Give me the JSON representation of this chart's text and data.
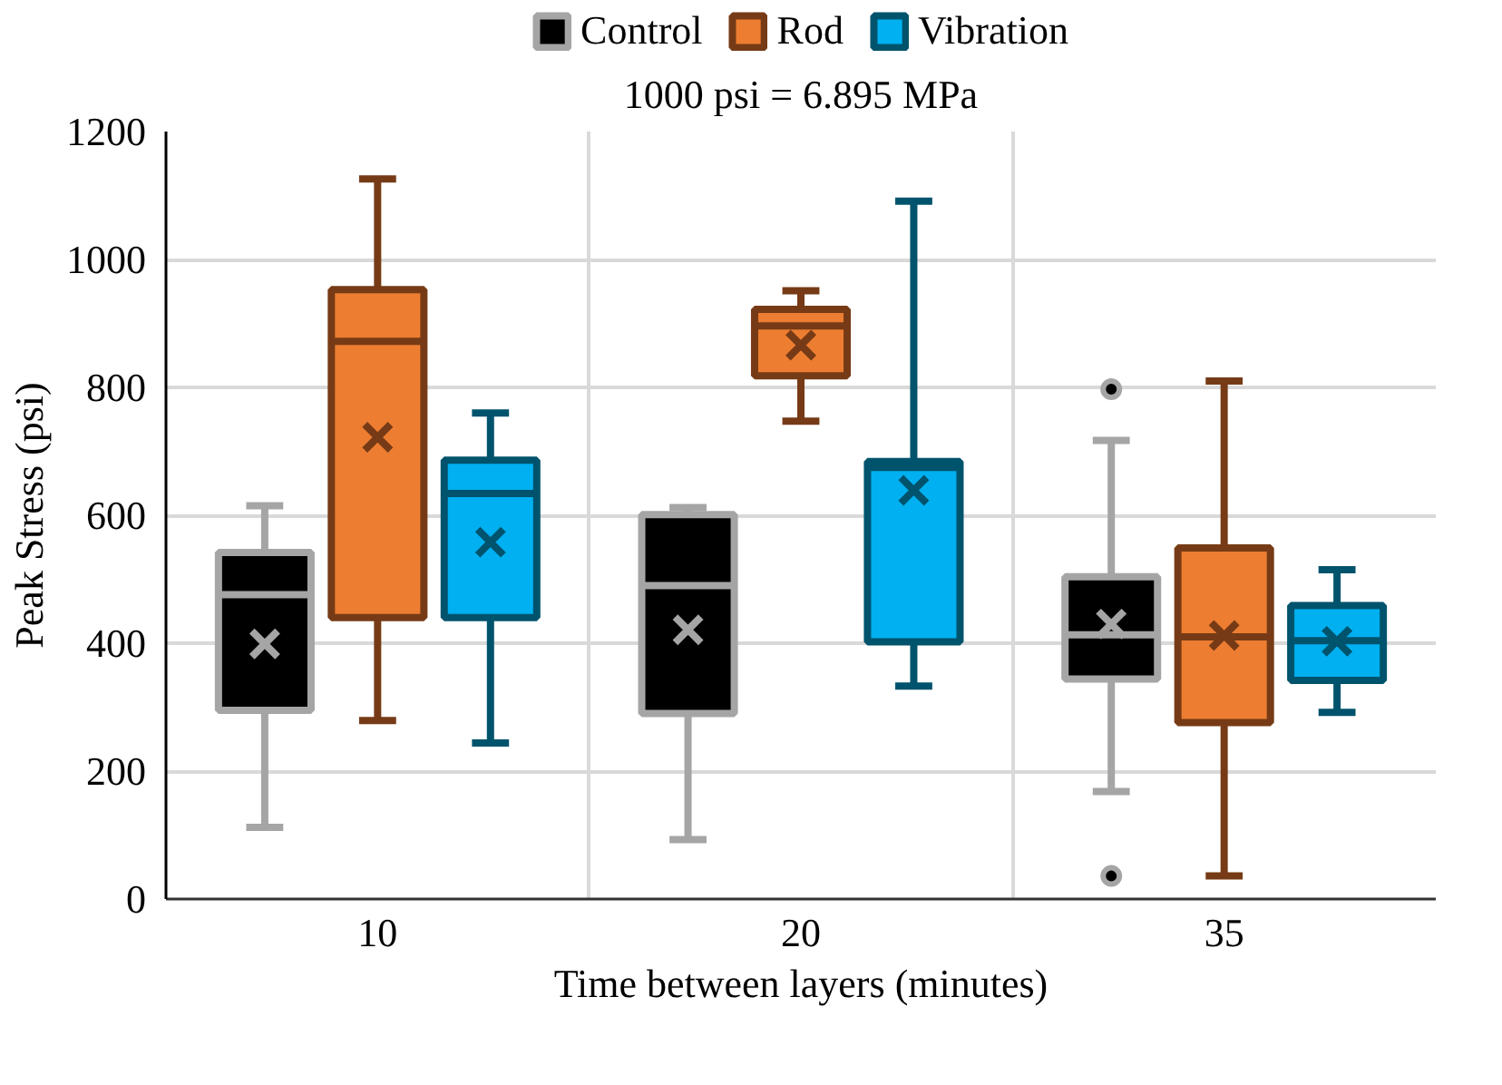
{
  "chart_data": {
    "type": "box",
    "subtitle": "1000 psi = 6.895 MPa",
    "xlabel": "Time between layers (minutes)",
    "ylabel": "Peak Stress (psi)",
    "categories": [
      "10",
      "20",
      "35"
    ],
    "ylim": [
      0,
      1200
    ],
    "yticks": [
      0,
      200,
      400,
      600,
      800,
      1000,
      1200
    ],
    "grid": true,
    "legend": "top",
    "series": [
      {
        "name": "Control",
        "color": "#000000",
        "boxes": [
          {
            "low": 112,
            "q1": 295,
            "median": 476,
            "q3": 542,
            "high": 615,
            "mean": 399
          },
          {
            "low": 93,
            "q1": 290,
            "median": 490,
            "q3": 601,
            "high": 612,
            "mean": 421
          },
          {
            "low": 168,
            "q1": 344,
            "median": 413,
            "q3": 504,
            "high": 717,
            "mean": 430,
            "outliers": [
              797,
              36
            ]
          }
        ]
      },
      {
        "name": "Rod",
        "color": "#ed7d31",
        "boxes": [
          {
            "low": 279,
            "q1": 440,
            "median": 872,
            "q3": 953,
            "high": 1126,
            "mean": 722
          },
          {
            "low": 747,
            "q1": 818,
            "median": 896,
            "q3": 922,
            "high": 951,
            "mean": 866
          },
          {
            "low": 36,
            "q1": 276,
            "median": 410,
            "q3": 549,
            "high": 810,
            "mean": 412
          }
        ]
      },
      {
        "name": "Vibration",
        "color": "#00b0f0",
        "boxes": [
          {
            "low": 244,
            "q1": 440,
            "median": 634,
            "q3": 686,
            "high": 760,
            "mean": 558
          },
          {
            "low": 333,
            "q1": 402,
            "median": 675,
            "q3": 684,
            "high": 1091,
            "mean": 639
          },
          {
            "low": 292,
            "q1": 342,
            "median": 404,
            "q3": 459,
            "high": 515,
            "mean": 403
          }
        ]
      }
    ]
  }
}
